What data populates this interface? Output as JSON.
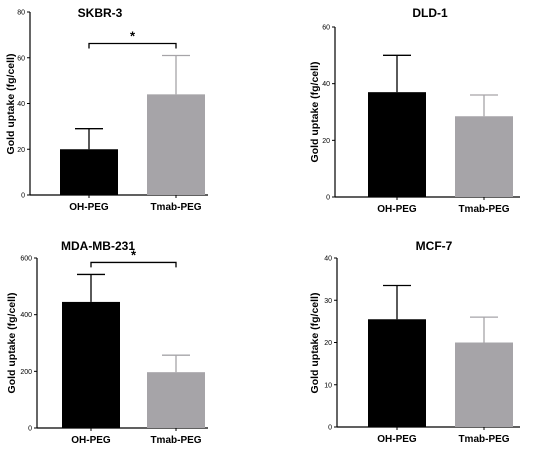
{
  "chart_data": [
    {
      "type": "bar",
      "title": "SKBR-3",
      "ylabel": "Gold uptake (fg/cell)",
      "categories": [
        "OH-PEG",
        "Tmab-PEG"
      ],
      "values": [
        20,
        44
      ],
      "errors": [
        9,
        17
      ],
      "colors": [
        "#000000",
        "#a6a4a8"
      ],
      "ylim": [
        0,
        80
      ],
      "yticks": [
        0,
        20,
        40,
        60,
        80
      ],
      "significance": {
        "between": [
          0,
          1
        ],
        "label": "*"
      }
    },
    {
      "type": "bar",
      "title": "DLD-1",
      "ylabel": "Gold uptake (fg/cell)",
      "categories": [
        "OH-PEG",
        "Tmab-PEG"
      ],
      "values": [
        37,
        28.5
      ],
      "errors": [
        13,
        7.5
      ],
      "colors": [
        "#000000",
        "#a6a4a8"
      ],
      "ylim": [
        0,
        60
      ],
      "yticks": [
        0,
        20,
        40,
        60
      ]
    },
    {
      "type": "bar",
      "title": "MDA-MB-231",
      "ylabel": "Gold uptake (fg/cell)",
      "categories": [
        "OH-PEG",
        "Tmab-PEG"
      ],
      "values": [
        445,
        197
      ],
      "errors": [
        97,
        60
      ],
      "colors": [
        "#000000",
        "#a6a4a8"
      ],
      "ylim": [
        0,
        600
      ],
      "yticks": [
        0,
        200,
        400,
        600
      ],
      "significance": {
        "between": [
          0,
          1
        ],
        "label": "*"
      }
    },
    {
      "type": "bar",
      "title": "MCF-7",
      "ylabel": "Gold uptake (fg/cell)",
      "categories": [
        "OH-PEG",
        "Tmab-PEG"
      ],
      "values": [
        25.5,
        20
      ],
      "errors": [
        8,
        6
      ],
      "colors": [
        "#000000",
        "#a6a4a8"
      ],
      "ylim": [
        0,
        40
      ],
      "yticks": [
        0,
        10,
        20,
        30,
        40
      ]
    }
  ]
}
